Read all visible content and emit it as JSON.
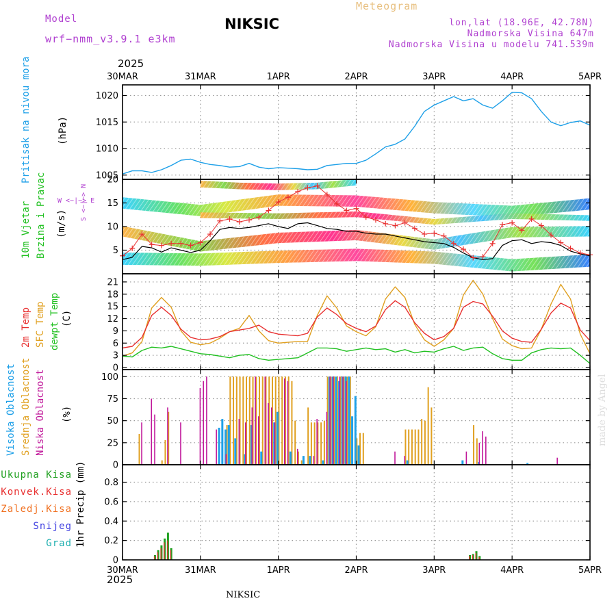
{
  "header": {
    "model_label": "Model",
    "model_name": "wrf−nmm_v3.9.1 e3km",
    "title": "NIKSIC",
    "meteogram": "Meteogram",
    "lonlat": "lon,lat (18.96E, 42.78N)",
    "altitude": "Nadmorska Visina 647m",
    "model_altitude": "Nadmorska Visina u modelu 741.539m",
    "year_top": "2025",
    "year_bottom": "2025",
    "footer": "NIKSIC",
    "watermark": "made by Angel"
  },
  "colors": {
    "model_text": "#b040d0",
    "meteogram": "#e8c080",
    "pressure": "#1ea0e8",
    "wind_label": "#20c020",
    "wind_legend": "#b040d0",
    "temp2m": "#e83030",
    "sfc_temp": "#e0a020",
    "dewpt": "#20c020",
    "cloud_high": "#1ea0e8",
    "cloud_mid": "#e0a020",
    "cloud_low": "#c0189a",
    "precip_total": "#20a020",
    "precip_conv": "#e83030",
    "precip_frz": "#f07020",
    "precip_snow": "#4040e0",
    "precip_grad": "#20b0b0",
    "watermark": "#dddddd"
  },
  "axis": {
    "x_ticks": [
      "30MAR",
      "31MAR",
      "1APR",
      "2APR",
      "3APR",
      "4APR",
      "5APR"
    ]
  },
  "panels": {
    "pressure": {
      "label": "Pritisak na nivou mora",
      "unit": "(hPa)",
      "ylim": [
        1004.2,
        1022
      ],
      "yticks": [
        "1005",
        "1010",
        "1015",
        "1020"
      ],
      "ytick_values": [
        1005,
        1010,
        1015,
        1020
      ]
    },
    "wind": {
      "label1": "10m Vjetar",
      "label2": "Brzina i Pravac",
      "unit": "(m/s)",
      "legend_top": "W  <−|−>  E",
      "legend_side": "S <−|−> N",
      "ylim": [
        0,
        20
      ],
      "yticks": [
        "5",
        "10",
        "15",
        "20"
      ],
      "ytick_values": [
        5,
        10,
        15,
        20
      ]
    },
    "temperature": {
      "label1": "2m Temp",
      "label2": "SFC Temp",
      "label3": "dewpt Temp",
      "unit": "(C)",
      "ylim": [
        -0.5,
        23
      ],
      "yticks": [
        "0",
        "3",
        "6",
        "9",
        "12",
        "15",
        "18",
        "21"
      ],
      "ytick_values": [
        0,
        3,
        6,
        9,
        12,
        15,
        18,
        21
      ]
    },
    "clouds": {
      "label1": "Visoka Oblacnost",
      "label2": "Srednja Oblacnost",
      "label3": "Niska Oblacnost",
      "unit": "(%)",
      "ylim": [
        0,
        108
      ],
      "yticks": [
        "0",
        "25",
        "50",
        "75",
        "100"
      ],
      "ytick_values": [
        0,
        25,
        50,
        75,
        100
      ]
    },
    "precip": {
      "legend_total": "Ukupna Kisa",
      "legend_conv": "Konvek.Kisa",
      "legend_frz": "Zaledj.Kisa",
      "legend_snow": "Snijeg",
      "legend_grad": "Grad",
      "unit": "1hr Precip (mm)",
      "ylim": [
        0,
        0.98
      ],
      "yticks": [
        "0",
        "0.2",
        "0.4",
        "0.6",
        "0.8"
      ],
      "ytick_values": [
        0,
        0.2,
        0.4,
        0.6,
        0.8
      ]
    }
  },
  "chart_data": {
    "type": "line",
    "title": "NIKSIC Meteogram",
    "x_range_hours": [
      0,
      144
    ],
    "x_tick_hours": [
      0,
      24,
      48,
      72,
      96,
      120,
      144
    ],
    "pressure_hpa": {
      "x": [
        0,
        3,
        6,
        9,
        12,
        15,
        18,
        21,
        24,
        27,
        30,
        33,
        36,
        39,
        42,
        45,
        48,
        51,
        54,
        57,
        60,
        63,
        66,
        69,
        72,
        75,
        78,
        81,
        84,
        87,
        90,
        93,
        96,
        99,
        102,
        105,
        108,
        111,
        114,
        117,
        120,
        123,
        126,
        129,
        132,
        135,
        138,
        141,
        144
      ],
      "y": [
        1005.2,
        1005.8,
        1005.8,
        1005.5,
        1006.0,
        1006.8,
        1007.8,
        1008.0,
        1007.4,
        1007.0,
        1006.8,
        1006.5,
        1006.6,
        1007.2,
        1006.5,
        1006.2,
        1006.4,
        1006.3,
        1006.2,
        1006.0,
        1006.1,
        1006.8,
        1007.0,
        1007.2,
        1007.2,
        1007.8,
        1009.0,
        1010.3,
        1010.8,
        1011.8,
        1014.2,
        1017.0,
        1018.2,
        1019.0,
        1019.8,
        1019.0,
        1019.4,
        1018.2,
        1017.6,
        1019.0,
        1020.6,
        1020.5,
        1019.4,
        1017.0,
        1015.0,
        1014.3,
        1014.9,
        1015.2,
        1014.4
      ]
    },
    "wind_speed_ms": {
      "x": [
        0,
        3,
        6,
        9,
        12,
        15,
        18,
        21,
        24,
        27,
        30,
        33,
        36,
        39,
        42,
        45,
        48,
        51,
        54,
        57,
        60,
        63,
        66,
        69,
        72,
        75,
        78,
        81,
        84,
        87,
        90,
        93,
        96,
        99,
        102,
        105,
        108,
        111,
        114,
        117,
        120,
        123,
        126,
        129,
        132,
        135,
        138,
        141,
        144
      ],
      "y": [
        3.0,
        3.5,
        5.8,
        5.5,
        4.6,
        5.5,
        5.0,
        4.5,
        5.0,
        7.0,
        9.4,
        9.8,
        9.6,
        9.8,
        10.2,
        10.6,
        10.0,
        9.6,
        10.6,
        10.8,
        10.2,
        9.6,
        9.4,
        9.0,
        9.0,
        8.6,
        8.4,
        8.4,
        8.0,
        7.6,
        7.2,
        6.8,
        6.6,
        6.4,
        5.6,
        4.4,
        3.4,
        3.0,
        3.2,
        6.0,
        7.0,
        7.2,
        6.4,
        6.8,
        6.6,
        6.0,
        4.8,
        4.2,
        3.8
      ]
    },
    "wind_gust_ms": {
      "x": [
        0,
        3,
        6,
        9,
        12,
        15,
        18,
        21,
        24,
        27,
        30,
        33,
        36,
        39,
        42,
        45,
        48,
        51,
        54,
        57,
        60,
        63,
        66,
        69,
        72,
        75,
        78,
        81,
        84,
        87,
        90,
        93,
        96,
        99,
        102,
        105,
        108,
        111,
        114,
        117,
        120,
        123,
        126,
        129,
        132,
        135,
        138,
        141,
        144
      ],
      "y": [
        3.8,
        5.4,
        8.4,
        6.2,
        6.0,
        6.4,
        6.4,
        6.0,
        6.6,
        8.4,
        11.2,
        11.6,
        11.0,
        11.4,
        12.0,
        13.4,
        15.2,
        16.2,
        17.4,
        18.2,
        18.6,
        16.8,
        14.8,
        13.4,
        13.8,
        12.0,
        11.4,
        10.6,
        10.2,
        10.8,
        9.6,
        8.4,
        8.6,
        8.0,
        6.4,
        5.2,
        3.4,
        3.6,
        6.4,
        10.4,
        10.8,
        9.2,
        11.6,
        10.2,
        8.2,
        6.6,
        5.4,
        4.4,
        4.0
      ]
    },
    "temp_2m_c": {
      "x": [
        0,
        3,
        6,
        9,
        12,
        15,
        18,
        21,
        24,
        27,
        30,
        33,
        36,
        39,
        42,
        45,
        48,
        51,
        54,
        57,
        60,
        63,
        66,
        69,
        72,
        75,
        78,
        81,
        84,
        87,
        90,
        93,
        96,
        99,
        102,
        105,
        108,
        111,
        114,
        117,
        120,
        123,
        126,
        129,
        132,
        135,
        138,
        141,
        144
      ],
      "y": [
        4.8,
        5.2,
        7.4,
        12.8,
        14.8,
        12.8,
        9.4,
        7.4,
        6.8,
        7.0,
        7.6,
        8.8,
        9.2,
        9.6,
        10.4,
        8.8,
        8.2,
        8.0,
        7.8,
        8.4,
        12.4,
        14.6,
        13.0,
        10.8,
        9.6,
        8.8,
        10.2,
        14.2,
        16.4,
        14.8,
        11.0,
        8.4,
        6.8,
        7.6,
        9.6,
        14.8,
        16.2,
        15.6,
        12.6,
        9.0,
        7.2,
        6.4,
        6.2,
        9.4,
        13.4,
        15.8,
        14.6,
        9.2,
        6.6
      ]
    },
    "temp_sfc_c": {
      "x": [
        0,
        3,
        6,
        9,
        12,
        15,
        18,
        21,
        24,
        27,
        30,
        33,
        36,
        39,
        42,
        45,
        48,
        51,
        54,
        57,
        60,
        63,
        66,
        69,
        72,
        75,
        78,
        81,
        84,
        87,
        90,
        93,
        96,
        99,
        102,
        105,
        108,
        111,
        114,
        117,
        120,
        123,
        126,
        129,
        132,
        135,
        138,
        141,
        144
      ],
      "y": [
        2.8,
        3.6,
        6.4,
        14.6,
        17.2,
        14.8,
        9.0,
        6.2,
        5.6,
        6.0,
        7.2,
        8.8,
        9.6,
        12.8,
        9.0,
        6.6,
        6.0,
        6.2,
        6.4,
        6.4,
        12.8,
        17.6,
        14.6,
        10.2,
        8.8,
        7.8,
        10.0,
        16.8,
        19.8,
        17.2,
        10.6,
        6.8,
        5.2,
        6.8,
        9.6,
        17.8,
        21.4,
        18.0,
        12.0,
        7.0,
        5.4,
        4.6,
        4.8,
        9.4,
        15.6,
        20.4,
        16.8,
        8.2,
        3.4
      ]
    },
    "dewpoint_c": {
      "x": [
        0,
        3,
        6,
        9,
        12,
        15,
        18,
        21,
        24,
        27,
        30,
        33,
        36,
        39,
        42,
        45,
        48,
        51,
        54,
        57,
        60,
        63,
        66,
        69,
        72,
        75,
        78,
        81,
        84,
        87,
        90,
        93,
        96,
        99,
        102,
        105,
        108,
        111,
        114,
        117,
        120,
        123,
        126,
        129,
        132,
        135,
        138,
        141,
        144
      ],
      "y": [
        2.8,
        2.6,
        4.2,
        5.0,
        4.8,
        5.2,
        4.6,
        4.0,
        3.4,
        3.2,
        2.8,
        2.4,
        3.0,
        3.2,
        2.2,
        1.8,
        2.0,
        2.2,
        2.4,
        3.6,
        4.8,
        4.8,
        4.6,
        4.0,
        4.4,
        4.8,
        4.4,
        4.6,
        3.8,
        4.4,
        3.6,
        4.0,
        3.8,
        4.6,
        5.2,
        4.2,
        4.8,
        5.0,
        3.4,
        2.2,
        1.8,
        1.8,
        3.6,
        4.4,
        4.8,
        4.6,
        4.8,
        3.0,
        1.0
      ]
    },
    "cloud_high_pct": [
      [
        10,
        0
      ],
      [
        14,
        0
      ],
      [
        30,
        42
      ],
      [
        31,
        52
      ],
      [
        32,
        40
      ],
      [
        33,
        45
      ],
      [
        35,
        30
      ],
      [
        38,
        12
      ],
      [
        40,
        45
      ],
      [
        43,
        15
      ],
      [
        47,
        48
      ],
      [
        48,
        60
      ],
      [
        52,
        15
      ],
      [
        56,
        10
      ],
      [
        58,
        10
      ],
      [
        62,
        5
      ],
      [
        64,
        100
      ],
      [
        65,
        100
      ],
      [
        66,
        100
      ],
      [
        67,
        95
      ],
      [
        68,
        100
      ],
      [
        69,
        100
      ],
      [
        70,
        100
      ],
      [
        71,
        55
      ],
      [
        72,
        78
      ],
      [
        73,
        22
      ],
      [
        88,
        5
      ],
      [
        105,
        5
      ],
      [
        110,
        3
      ],
      [
        125,
        2
      ]
    ],
    "cloud_mid_pct": [
      [
        5,
        35
      ],
      [
        12,
        5
      ],
      [
        13,
        28
      ],
      [
        14,
        60
      ],
      [
        29,
        0
      ],
      [
        32,
        45
      ],
      [
        33,
        100
      ],
      [
        34,
        100
      ],
      [
        35,
        100
      ],
      [
        36,
        100
      ],
      [
        37,
        100
      ],
      [
        38,
        100
      ],
      [
        39,
        100
      ],
      [
        40,
        100
      ],
      [
        41,
        100
      ],
      [
        42,
        100
      ],
      [
        43,
        100
      ],
      [
        44,
        100
      ],
      [
        45,
        100
      ],
      [
        46,
        100
      ],
      [
        47,
        100
      ],
      [
        48,
        100
      ],
      [
        49,
        100
      ],
      [
        50,
        100
      ],
      [
        51,
        100
      ],
      [
        52,
        95
      ],
      [
        53,
        50
      ],
      [
        54,
        15
      ],
      [
        55,
        5
      ],
      [
        57,
        65
      ],
      [
        58,
        48
      ],
      [
        59,
        48
      ],
      [
        60,
        48
      ],
      [
        61,
        48
      ],
      [
        62,
        50
      ],
      [
        63,
        100
      ],
      [
        64,
        100
      ],
      [
        65,
        100
      ],
      [
        66,
        100
      ],
      [
        67,
        100
      ],
      [
        68,
        100
      ],
      [
        69,
        100
      ],
      [
        70,
        100
      ],
      [
        72,
        30
      ],
      [
        73,
        36
      ],
      [
        74,
        36
      ],
      [
        87,
        40
      ],
      [
        88,
        40
      ],
      [
        89,
        40
      ],
      [
        90,
        40
      ],
      [
        91,
        40
      ],
      [
        92,
        52
      ],
      [
        93,
        50
      ],
      [
        94,
        88
      ],
      [
        95,
        65
      ],
      [
        108,
        45
      ],
      [
        109,
        30
      ]
    ],
    "cloud_low_pct": [
      [
        6,
        48
      ],
      [
        9,
        75
      ],
      [
        10,
        57
      ],
      [
        14,
        65
      ],
      [
        18,
        48
      ],
      [
        24,
        87
      ],
      [
        25,
        95
      ],
      [
        26,
        100
      ],
      [
        29,
        40
      ],
      [
        32,
        12
      ],
      [
        36,
        52
      ],
      [
        38,
        48
      ],
      [
        40,
        65
      ],
      [
        41,
        100
      ],
      [
        42,
        55
      ],
      [
        44,
        100
      ],
      [
        45,
        70
      ],
      [
        46,
        65
      ],
      [
        47,
        48
      ],
      [
        50,
        98
      ],
      [
        51,
        95
      ],
      [
        54,
        18
      ],
      [
        59,
        10
      ],
      [
        60,
        52
      ],
      [
        63,
        60
      ],
      [
        64,
        100
      ],
      [
        65,
        100
      ],
      [
        67,
        100
      ],
      [
        68,
        100
      ],
      [
        69,
        95
      ],
      [
        84,
        15
      ],
      [
        87,
        10
      ],
      [
        106,
        15
      ],
      [
        110,
        25
      ],
      [
        111,
        38
      ],
      [
        112,
        32
      ],
      [
        134,
        8
      ]
    ],
    "precip_total_mm": [
      [
        10,
        0.05
      ],
      [
        11,
        0.1
      ],
      [
        12,
        0.15
      ],
      [
        13,
        0.22
      ],
      [
        14,
        0.28
      ],
      [
        15,
        0.12
      ],
      [
        107,
        0.05
      ],
      [
        108,
        0.06
      ],
      [
        109,
        0.09
      ],
      [
        110,
        0.04
      ]
    ],
    "precip_conv_mm": [
      [
        10,
        0.04
      ],
      [
        11,
        0.08
      ],
      [
        12,
        0.12
      ],
      [
        13,
        0.18
      ],
      [
        14,
        0.2
      ],
      [
        15,
        0.1
      ],
      [
        107,
        0.04
      ],
      [
        108,
        0.05
      ],
      [
        109,
        0.07
      ],
      [
        110,
        0.03
      ]
    ]
  }
}
